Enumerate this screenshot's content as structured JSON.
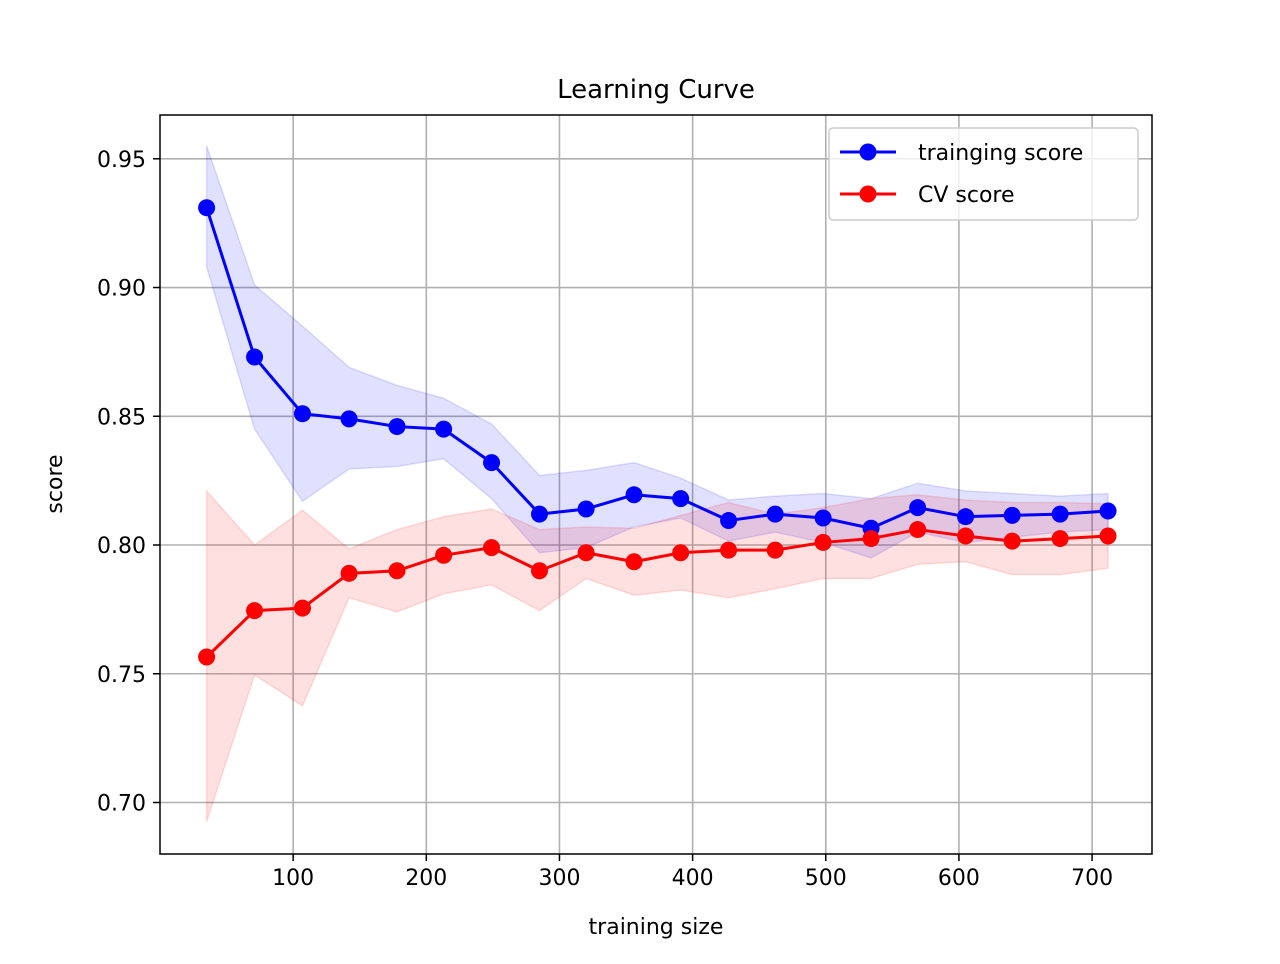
{
  "chart_data": {
    "type": "line",
    "title": "Learning Curve",
    "xlabel": "training size",
    "ylabel": "score",
    "xlim": [
      0,
      745
    ],
    "ylim": [
      0.68,
      0.967
    ],
    "xticks": [
      100,
      200,
      300,
      400,
      500,
      600,
      700
    ],
    "xtick_labels": [
      "100",
      "200",
      "300",
      "400",
      "500",
      "600",
      "700"
    ],
    "yticks": [
      0.7,
      0.75,
      0.8,
      0.85,
      0.9,
      0.95
    ],
    "ytick_labels": [
      "0.70",
      "0.75",
      "0.80",
      "0.85",
      "0.90",
      "0.95"
    ],
    "grid": true,
    "legend_position": "top-right",
    "x": [
      35,
      71,
      107,
      142,
      178,
      213,
      249,
      285,
      320,
      356,
      391,
      427,
      462,
      498,
      534,
      569,
      605,
      640,
      676,
      712
    ],
    "series": [
      {
        "name": "trainging score",
        "color": "#0000ff",
        "band_color": "#0000ff",
        "values": [
          0.931,
          0.873,
          0.851,
          0.849,
          0.846,
          0.845,
          0.832,
          0.812,
          0.814,
          0.8195,
          0.818,
          0.8095,
          0.812,
          0.8105,
          0.8065,
          0.8145,
          0.811,
          0.8115,
          0.812,
          0.8132
        ],
        "upper": [
          0.955,
          0.901,
          0.885,
          0.869,
          0.862,
          0.857,
          0.847,
          0.827,
          0.829,
          0.832,
          0.826,
          0.8175,
          0.819,
          0.82,
          0.818,
          0.824,
          0.821,
          0.82,
          0.819,
          0.82
        ],
        "lower": [
          0.908,
          0.845,
          0.817,
          0.8295,
          0.8305,
          0.8335,
          0.818,
          0.797,
          0.799,
          0.807,
          0.8105,
          0.8015,
          0.805,
          0.801,
          0.795,
          0.805,
          0.801,
          0.803,
          0.805,
          0.806
        ]
      },
      {
        "name": "CV score",
        "color": "#ff0000",
        "band_color": "#ff0000",
        "values": [
          0.7565,
          0.7745,
          0.7755,
          0.789,
          0.79,
          0.796,
          0.799,
          0.79,
          0.797,
          0.7935,
          0.797,
          0.798,
          0.798,
          0.801,
          0.8025,
          0.806,
          0.8035,
          0.8015,
          0.8025,
          0.8035
        ],
        "upper": [
          0.821,
          0.8,
          0.8135,
          0.7985,
          0.806,
          0.811,
          0.814,
          0.806,
          0.807,
          0.8065,
          0.8115,
          0.8165,
          0.812,
          0.8145,
          0.818,
          0.8195,
          0.8175,
          0.8165,
          0.8165,
          0.816
        ],
        "lower": [
          0.6925,
          0.7495,
          0.7375,
          0.7795,
          0.774,
          0.781,
          0.7845,
          0.7745,
          0.787,
          0.7805,
          0.7825,
          0.7795,
          0.783,
          0.787,
          0.787,
          0.7925,
          0.7935,
          0.7885,
          0.7885,
          0.791
        ]
      }
    ]
  }
}
